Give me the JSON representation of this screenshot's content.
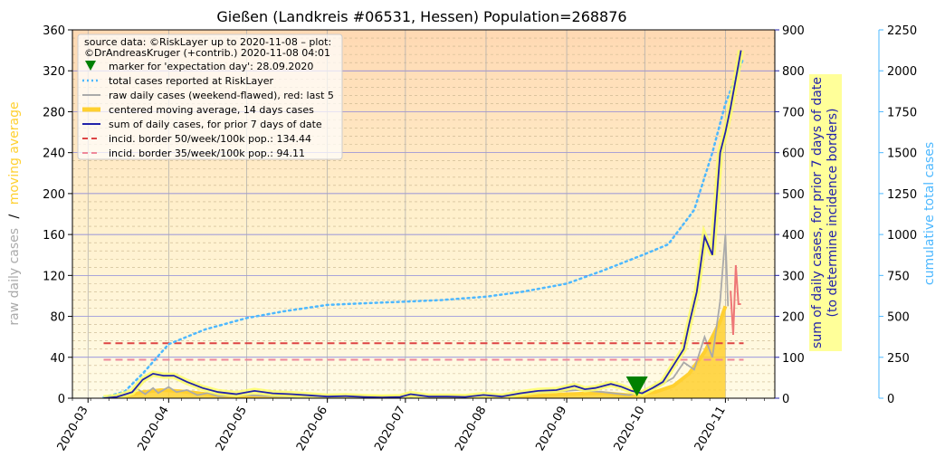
{
  "chart_data": {
    "type": "line",
    "title": "Gießen (Landkreis #06531, Hessen) Population=268876",
    "left_ylabel_gray": "raw daily cases",
    "left_ylabel_sep": "/",
    "left_ylabel_gold": "moving average",
    "right_ylabel_line1": "sum of daily cases, for prior 7 days of date",
    "right_ylabel_line2": "(to determine incidence borders)",
    "far_right_ylabel": "cumulative total cases",
    "x_ticks": [
      "2020-03",
      "2020-04",
      "2020-05",
      "2020-06",
      "2020-07",
      "2020-08",
      "2020-09",
      "2020-10",
      "2020-11"
    ],
    "x_range": [
      "2020-02-24",
      "2020-11-20"
    ],
    "left_ylim": [
      0,
      360
    ],
    "left_yticks": [
      "0",
      "40",
      "80",
      "120",
      "160",
      "200",
      "240",
      "280",
      "320",
      "360"
    ],
    "mid_ylim": [
      0,
      900
    ],
    "mid_yticks": [
      "0",
      "100",
      "200",
      "300",
      "400",
      "500",
      "600",
      "700",
      "800",
      "900"
    ],
    "far_ylim": [
      0,
      2250
    ],
    "far_yticks": [
      "0",
      "250",
      "500",
      "750",
      "1000",
      "1250",
      "1500",
      "1750",
      "2000",
      "2250"
    ],
    "legend": {
      "source_line1": "source data: ©RiskLayer up to 2020-11-08 – plot:",
      "source_line2": "©DrAndreasKruger (+contrib.) 2020-11-08 04:01",
      "entries": [
        {
          "label": "marker for 'expectation day': 28.09.2020",
          "style": "marker",
          "color": "#008000"
        },
        {
          "label": "total cases reported at RiskLayer",
          "style": "dotted",
          "color": "#4db8ff"
        },
        {
          "label": "raw daily cases (weekend-flawed), red: last 5",
          "style": "solid",
          "color": "#aaaaaa"
        },
        {
          "label": "centered moving average, 14 days cases",
          "style": "thick",
          "color": "#ffd030"
        },
        {
          "label": "sum of daily cases, for prior 7 days of date",
          "style": "solid",
          "color": "#2222aa"
        },
        {
          "label": "incid. border 50/week/100k pop.: 134.44",
          "style": "dashed",
          "color": "#dd4444"
        },
        {
          "label": "incid. border 35/week/100k pop.: 94.11",
          "style": "dashed",
          "color": "#ee8899"
        }
      ]
    },
    "incidence_border_50": 134.44,
    "incidence_border_35": 94.11,
    "expectation_day": "2020-09-28",
    "series": [
      {
        "name": "sum of daily cases, for prior 7 days of date",
        "axis": "mid",
        "points": [
          [
            "2020-03-07",
            0
          ],
          [
            "2020-03-12",
            3
          ],
          [
            "2020-03-18",
            15
          ],
          [
            "2020-03-22",
            45
          ],
          [
            "2020-03-26",
            60
          ],
          [
            "2020-03-30",
            55
          ],
          [
            "2020-04-03",
            55
          ],
          [
            "2020-04-08",
            40
          ],
          [
            "2020-04-14",
            25
          ],
          [
            "2020-04-20",
            15
          ],
          [
            "2020-04-27",
            10
          ],
          [
            "2020-05-04",
            18
          ],
          [
            "2020-05-11",
            12
          ],
          [
            "2020-05-18",
            10
          ],
          [
            "2020-05-25",
            7
          ],
          [
            "2020-06-01",
            4
          ],
          [
            "2020-06-08",
            5
          ],
          [
            "2020-06-15",
            3
          ],
          [
            "2020-06-22",
            2
          ],
          [
            "2020-06-29",
            3
          ],
          [
            "2020-07-03",
            10
          ],
          [
            "2020-07-10",
            4
          ],
          [
            "2020-07-17",
            4
          ],
          [
            "2020-07-24",
            3
          ],
          [
            "2020-07-31",
            8
          ],
          [
            "2020-08-07",
            4
          ],
          [
            "2020-08-14",
            12
          ],
          [
            "2020-08-21",
            18
          ],
          [
            "2020-08-28",
            20
          ],
          [
            "2020-09-04",
            30
          ],
          [
            "2020-09-08",
            22
          ],
          [
            "2020-09-12",
            25
          ],
          [
            "2020-09-18",
            35
          ],
          [
            "2020-09-22",
            28
          ],
          [
            "2020-09-26",
            18
          ],
          [
            "2020-09-30",
            12
          ],
          [
            "2020-10-04",
            25
          ],
          [
            "2020-10-08",
            40
          ],
          [
            "2020-10-12",
            80
          ],
          [
            "2020-10-16",
            120
          ],
          [
            "2020-10-18",
            180
          ],
          [
            "2020-10-21",
            260
          ],
          [
            "2020-10-24",
            395
          ],
          [
            "2020-10-27",
            350
          ],
          [
            "2020-10-30",
            600
          ],
          [
            "2020-11-01",
            650
          ],
          [
            "2020-11-03",
            710
          ],
          [
            "2020-11-05",
            780
          ],
          [
            "2020-11-07",
            850
          ]
        ]
      },
      {
        "name": "total cases reported at RiskLayer",
        "axis": "far",
        "points": [
          [
            "2020-03-07",
            5
          ],
          [
            "2020-03-15",
            40
          ],
          [
            "2020-03-22",
            150
          ],
          [
            "2020-04-01",
            330
          ],
          [
            "2020-04-15",
            420
          ],
          [
            "2020-05-01",
            490
          ],
          [
            "2020-05-15",
            530
          ],
          [
            "2020-06-01",
            570
          ],
          [
            "2020-06-15",
            580
          ],
          [
            "2020-07-01",
            590
          ],
          [
            "2020-07-15",
            600
          ],
          [
            "2020-08-01",
            620
          ],
          [
            "2020-08-15",
            650
          ],
          [
            "2020-09-01",
            700
          ],
          [
            "2020-09-15",
            780
          ],
          [
            "2020-10-01",
            880
          ],
          [
            "2020-10-10",
            940
          ],
          [
            "2020-10-20",
            1150
          ],
          [
            "2020-10-27",
            1500
          ],
          [
            "2020-11-01",
            1800
          ],
          [
            "2020-11-08",
            2080
          ]
        ]
      },
      {
        "name": "centered moving average, 14 days cases",
        "axis": "left",
        "points": [
          [
            "2020-03-07",
            0
          ],
          [
            "2020-03-15",
            2
          ],
          [
            "2020-03-22",
            6
          ],
          [
            "2020-03-29",
            8
          ],
          [
            "2020-04-05",
            7
          ],
          [
            "2020-04-12",
            5
          ],
          [
            "2020-04-19",
            3
          ],
          [
            "2020-05-01",
            2
          ],
          [
            "2020-05-15",
            2
          ],
          [
            "2020-06-01",
            1
          ],
          [
            "2020-07-01",
            1
          ],
          [
            "2020-08-01",
            1.5
          ],
          [
            "2020-08-15",
            2.5
          ],
          [
            "2020-09-01",
            4
          ],
          [
            "2020-09-15",
            5
          ],
          [
            "2020-09-25",
            3
          ],
          [
            "2020-10-05",
            6
          ],
          [
            "2020-10-12",
            12
          ],
          [
            "2020-10-18",
            24
          ],
          [
            "2020-10-24",
            45
          ],
          [
            "2020-10-30",
            75
          ],
          [
            "2020-11-01",
            90
          ]
        ]
      },
      {
        "name": "raw daily cases (weekend-flawed), red: last 5",
        "axis": "left",
        "points": [
          [
            "2020-03-07",
            0
          ],
          [
            "2020-03-12",
            1
          ],
          [
            "2020-03-16",
            3
          ],
          [
            "2020-03-20",
            9
          ],
          [
            "2020-03-23",
            4
          ],
          [
            "2020-03-26",
            10
          ],
          [
            "2020-03-28",
            5
          ],
          [
            "2020-04-01",
            11
          ],
          [
            "2020-04-04",
            6
          ],
          [
            "2020-04-08",
            8
          ],
          [
            "2020-04-12",
            3
          ],
          [
            "2020-04-16",
            5
          ],
          [
            "2020-04-20",
            2
          ],
          [
            "2020-05-01",
            3
          ],
          [
            "2020-05-10",
            2
          ],
          [
            "2020-05-20",
            1
          ],
          [
            "2020-06-01",
            1
          ],
          [
            "2020-07-01",
            1
          ],
          [
            "2020-08-01",
            2
          ],
          [
            "2020-08-20",
            5
          ],
          [
            "2020-09-05",
            8
          ],
          [
            "2020-09-15",
            6
          ],
          [
            "2020-09-25",
            3
          ],
          [
            "2020-10-05",
            10
          ],
          [
            "2020-10-12",
            20
          ],
          [
            "2020-10-16",
            35
          ],
          [
            "2020-10-20",
            28
          ],
          [
            "2020-10-24",
            60
          ],
          [
            "2020-10-27",
            40
          ],
          [
            "2020-10-30",
            95
          ],
          [
            "2020-11-01",
            160
          ],
          [
            "2020-11-02",
            90
          ]
        ]
      },
      {
        "name": "red: last 5",
        "axis": "left",
        "points": [
          [
            "2020-11-03",
            105
          ],
          [
            "2020-11-04",
            62
          ],
          [
            "2020-11-05",
            130
          ],
          [
            "2020-11-06",
            92
          ],
          [
            "2020-11-07",
            92
          ]
        ]
      }
    ],
    "colors": {
      "mid_axis": "#2222aa",
      "far_axis": "#4db8ff",
      "gold": "#ffd030",
      "gray": "#aaaaaa",
      "red": "#dd4444",
      "pink": "#ee8899",
      "marker": "#008000",
      "label_box": "#ffff99"
    }
  }
}
